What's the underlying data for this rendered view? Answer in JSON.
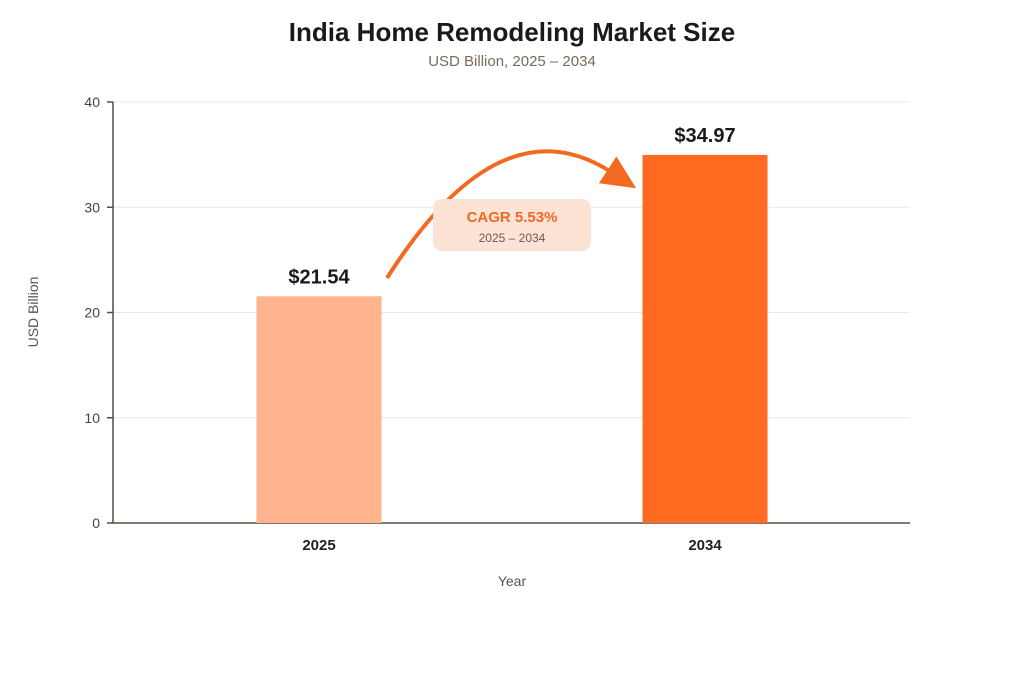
{
  "chart_data": {
    "type": "bar",
    "title": "India Home Remodeling Market Size",
    "subtitle": "USD Billion, 2025 – 2034",
    "xlabel": "Year",
    "ylabel": "USD Billion",
    "categories": [
      "2025",
      "2034"
    ],
    "values": [
      21.54,
      34.97
    ],
    "data_labels": [
      "$21.54",
      "$34.97"
    ],
    "bar_colors": [
      "#ffb48e",
      "#ff6a21"
    ],
    "ylim": [
      0,
      40
    ],
    "yticks": [
      0,
      10,
      20,
      30,
      40
    ],
    "grid": true,
    "legend": "none",
    "annotation": {
      "label": "CAGR 5.53%",
      "period": "2025 – 2034",
      "color": "#f26a21",
      "box_color": "#fde3d6"
    }
  }
}
